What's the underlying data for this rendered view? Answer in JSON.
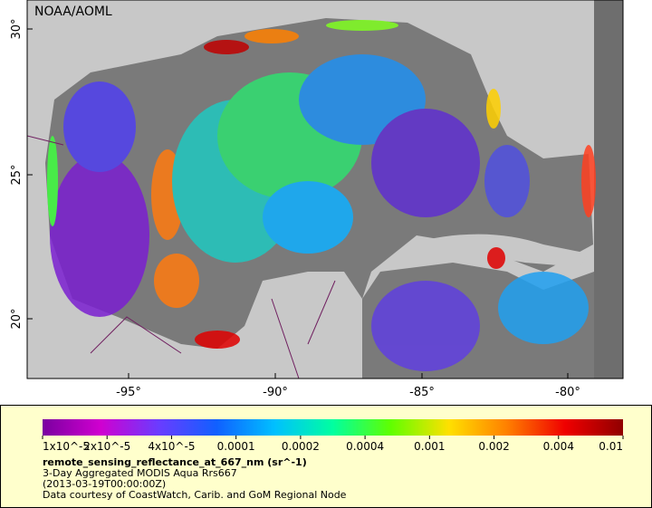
{
  "map": {
    "credit": "NOAA/AOML",
    "lat_labels": [
      "30°",
      "25°",
      "20°"
    ],
    "lon_labels": [
      "-95°",
      "-90°",
      "-85°",
      "-80°"
    ]
  },
  "legend": {
    "ticks": [
      "1x10^-5",
      "2x10^-5",
      "4x10^-5",
      "0.0001",
      "0.0002",
      "0.0004",
      "0.001",
      "0.002",
      "0.004",
      "0.01"
    ],
    "variable": "remote_sensing_reflectance_at_667_nm (sr^-1)",
    "lines": [
      "3-Day Aggregated MODIS Aqua Rrs667",
      "(2013-03-19T00:00:00Z)",
      "Data courtesy of CoastWatch, Carib. and GoM Regional Node"
    ]
  }
}
